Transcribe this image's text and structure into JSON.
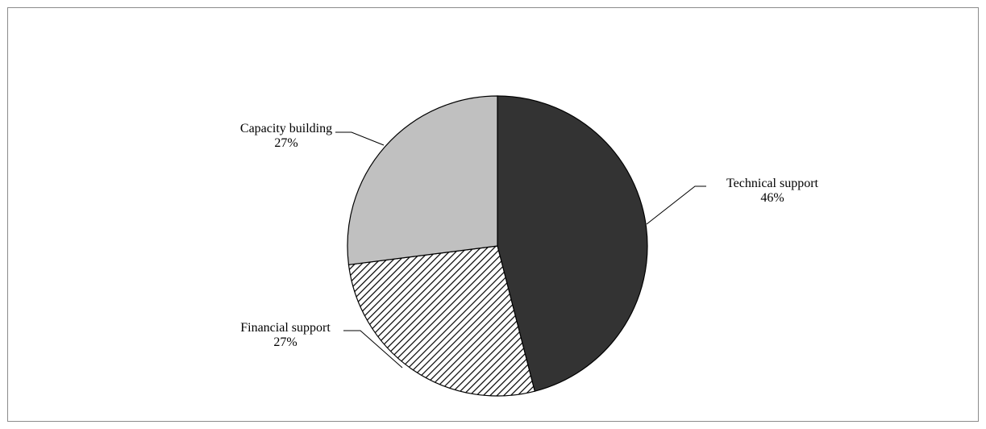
{
  "chart_data": {
    "type": "pie",
    "title": "",
    "slices": [
      {
        "label": "Technical support",
        "value": 46,
        "value_label": "46%",
        "fill": "#333333",
        "pattern": "solid"
      },
      {
        "label": "Financial support",
        "value": 27,
        "value_label": "27%",
        "fill": "#ffffff",
        "pattern": "diagonal-hatch"
      },
      {
        "label": "Capacity building",
        "value": 27,
        "value_label": "27%",
        "fill": "#c0c0c0",
        "pattern": "solid"
      }
    ],
    "start_angle": "12 o'clock",
    "direction": "clockwise",
    "legend": "none",
    "labels": "outside with leader lines"
  },
  "colors": {
    "outline": "#000000",
    "frame_border": "#8c8c8c",
    "hatch": "#000000"
  }
}
